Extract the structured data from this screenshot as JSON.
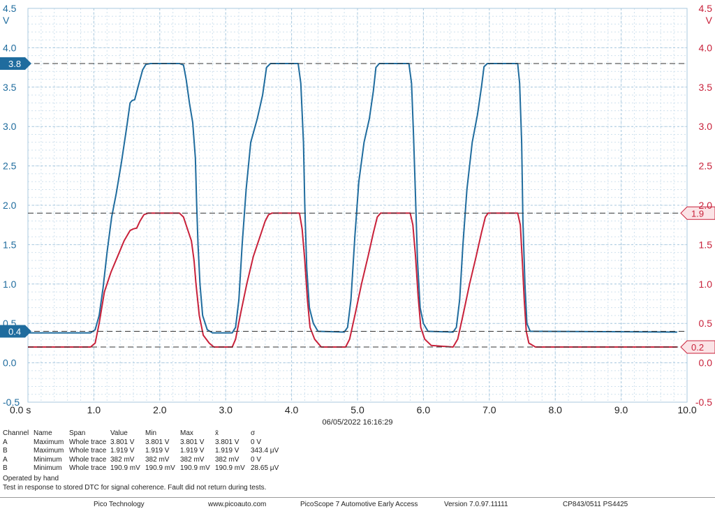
{
  "chart_data": {
    "type": "line",
    "timestamp": "06/05/2022 16:16:29",
    "x_axis": {
      "range": [
        0,
        10
      ],
      "ticks": [
        "0.0 s",
        "1.0",
        "2.0",
        "3.0",
        "4.0",
        "5.0",
        "6.0",
        "7.0",
        "8.0",
        "9.0",
        "10.0"
      ]
    },
    "y_axis_left": {
      "unit": "V",
      "range": [
        -0.5,
        4.5
      ],
      "ticks": [
        "4.5",
        "4.0",
        "3.5",
        "3.0",
        "2.5",
        "2.0",
        "1.5",
        "1.0",
        "0.5",
        "0.0",
        "-0.5"
      ],
      "color": "#1f6c9e"
    },
    "y_axis_right": {
      "unit": "V",
      "range": [
        -0.5,
        4.5
      ],
      "ticks": [
        "4.5",
        "4.0",
        "3.5",
        "3.0",
        "2.5",
        "2.0",
        "1.5",
        "1.0",
        "0.5",
        "0.0",
        "-0.5"
      ],
      "color": "#c8213a"
    },
    "grid": true,
    "markers_left": [
      {
        "label": "3.8",
        "value": 3.8
      },
      {
        "label": "0.4",
        "value": 0.4
      }
    ],
    "markers_right": [
      {
        "label": "1.9",
        "value": 1.9
      },
      {
        "label": "0.2",
        "value": 0.2
      }
    ],
    "series": [
      {
        "color": "#1f6c9e",
        "points": [
          [
            0.0,
            0.38
          ],
          [
            0.95,
            0.38
          ],
          [
            1.02,
            0.42
          ],
          [
            1.08,
            0.6
          ],
          [
            1.14,
            0.95
          ],
          [
            1.2,
            1.4
          ],
          [
            1.27,
            1.85
          ],
          [
            1.34,
            2.15
          ],
          [
            1.42,
            2.55
          ],
          [
            1.5,
            3.0
          ],
          [
            1.55,
            3.3
          ],
          [
            1.58,
            3.33
          ],
          [
            1.62,
            3.34
          ],
          [
            1.67,
            3.5
          ],
          [
            1.74,
            3.72
          ],
          [
            1.79,
            3.79
          ],
          [
            1.86,
            3.8
          ],
          [
            2.3,
            3.8
          ],
          [
            2.36,
            3.78
          ],
          [
            2.4,
            3.6
          ],
          [
            2.45,
            3.3
          ],
          [
            2.5,
            3.05
          ],
          [
            2.54,
            2.6
          ],
          [
            2.56,
            2.0
          ],
          [
            2.58,
            1.5
          ],
          [
            2.61,
            1.0
          ],
          [
            2.65,
            0.6
          ],
          [
            2.72,
            0.42
          ],
          [
            2.8,
            0.38
          ],
          [
            3.1,
            0.38
          ],
          [
            3.15,
            0.45
          ],
          [
            3.2,
            0.8
          ],
          [
            3.25,
            1.5
          ],
          [
            3.31,
            2.2
          ],
          [
            3.38,
            2.8
          ],
          [
            3.48,
            3.1
          ],
          [
            3.56,
            3.4
          ],
          [
            3.62,
            3.75
          ],
          [
            3.68,
            3.8
          ],
          [
            4.1,
            3.8
          ],
          [
            4.14,
            3.55
          ],
          [
            4.18,
            2.8
          ],
          [
            4.2,
            2.0
          ],
          [
            4.23,
            1.2
          ],
          [
            4.27,
            0.7
          ],
          [
            4.33,
            0.5
          ],
          [
            4.4,
            0.4
          ],
          [
            4.8,
            0.39
          ],
          [
            4.85,
            0.45
          ],
          [
            4.9,
            0.8
          ],
          [
            4.96,
            1.6
          ],
          [
            5.02,
            2.3
          ],
          [
            5.1,
            2.8
          ],
          [
            5.18,
            3.1
          ],
          [
            5.24,
            3.45
          ],
          [
            5.28,
            3.75
          ],
          [
            5.33,
            3.8
          ],
          [
            5.78,
            3.8
          ],
          [
            5.82,
            3.55
          ],
          [
            5.85,
            2.9
          ],
          [
            5.88,
            2.1
          ],
          [
            5.91,
            1.3
          ],
          [
            5.95,
            0.7
          ],
          [
            6.0,
            0.5
          ],
          [
            6.07,
            0.4
          ],
          [
            6.45,
            0.39
          ],
          [
            6.5,
            0.45
          ],
          [
            6.55,
            0.8
          ],
          [
            6.6,
            1.5
          ],
          [
            6.66,
            2.2
          ],
          [
            6.74,
            2.8
          ],
          [
            6.82,
            3.15
          ],
          [
            6.88,
            3.5
          ],
          [
            6.92,
            3.76
          ],
          [
            6.97,
            3.8
          ],
          [
            7.43,
            3.8
          ],
          [
            7.46,
            3.55
          ],
          [
            7.49,
            2.8
          ],
          [
            7.51,
            1.8
          ],
          [
            7.54,
            1.0
          ],
          [
            7.57,
            0.5
          ],
          [
            7.62,
            0.4
          ],
          [
            9.85,
            0.39
          ]
        ]
      },
      {
        "color": "#c8213a",
        "points": [
          [
            0.0,
            0.2
          ],
          [
            0.95,
            0.2
          ],
          [
            1.02,
            0.25
          ],
          [
            1.08,
            0.5
          ],
          [
            1.16,
            0.9
          ],
          [
            1.26,
            1.15
          ],
          [
            1.36,
            1.35
          ],
          [
            1.46,
            1.55
          ],
          [
            1.55,
            1.68
          ],
          [
            1.6,
            1.7
          ],
          [
            1.65,
            1.71
          ],
          [
            1.7,
            1.8
          ],
          [
            1.76,
            1.88
          ],
          [
            1.82,
            1.9
          ],
          [
            2.3,
            1.9
          ],
          [
            2.36,
            1.85
          ],
          [
            2.42,
            1.7
          ],
          [
            2.48,
            1.55
          ],
          [
            2.52,
            1.3
          ],
          [
            2.55,
            1.0
          ],
          [
            2.6,
            0.6
          ],
          [
            2.66,
            0.35
          ],
          [
            2.75,
            0.25
          ],
          [
            2.82,
            0.2
          ],
          [
            3.1,
            0.2
          ],
          [
            3.15,
            0.3
          ],
          [
            3.22,
            0.6
          ],
          [
            3.32,
            1.0
          ],
          [
            3.42,
            1.35
          ],
          [
            3.52,
            1.6
          ],
          [
            3.6,
            1.8
          ],
          [
            3.65,
            1.88
          ],
          [
            3.7,
            1.9
          ],
          [
            4.12,
            1.9
          ],
          [
            4.16,
            1.7
          ],
          [
            4.2,
            1.3
          ],
          [
            4.24,
            0.8
          ],
          [
            4.28,
            0.45
          ],
          [
            4.35,
            0.3
          ],
          [
            4.45,
            0.2
          ],
          [
            4.82,
            0.2
          ],
          [
            4.88,
            0.3
          ],
          [
            4.96,
            0.6
          ],
          [
            5.06,
            1.0
          ],
          [
            5.16,
            1.35
          ],
          [
            5.24,
            1.65
          ],
          [
            5.3,
            1.85
          ],
          [
            5.35,
            1.9
          ],
          [
            5.8,
            1.9
          ],
          [
            5.84,
            1.75
          ],
          [
            5.88,
            1.35
          ],
          [
            5.92,
            0.85
          ],
          [
            5.96,
            0.45
          ],
          [
            6.02,
            0.3
          ],
          [
            6.12,
            0.22
          ],
          [
            6.45,
            0.2
          ],
          [
            6.52,
            0.3
          ],
          [
            6.6,
            0.6
          ],
          [
            6.7,
            1.0
          ],
          [
            6.8,
            1.35
          ],
          [
            6.88,
            1.65
          ],
          [
            6.94,
            1.85
          ],
          [
            6.98,
            1.9
          ],
          [
            7.43,
            1.9
          ],
          [
            7.47,
            1.75
          ],
          [
            7.5,
            1.3
          ],
          [
            7.53,
            0.8
          ],
          [
            7.56,
            0.4
          ],
          [
            7.6,
            0.25
          ],
          [
            7.7,
            0.2
          ],
          [
            9.85,
            0.2
          ]
        ]
      }
    ]
  },
  "measurements": {
    "headers": [
      "Channel",
      "Name",
      "Span",
      "Value",
      "Min",
      "Max",
      "x̄",
      "σ"
    ],
    "rows": [
      [
        "A",
        "Maximum",
        "Whole trace",
        "3.801 V",
        "3.801 V",
        "3.801 V",
        "3.801 V",
        "0 V"
      ],
      [
        "B",
        "Maximum",
        "Whole trace",
        "1.919 V",
        "1.919 V",
        "1.919 V",
        "1.919 V",
        "343.4 μV"
      ],
      [
        "A",
        "Minimum",
        "Whole trace",
        "382 mV",
        "382 mV",
        "382 mV",
        "382 mV",
        "0 V"
      ],
      [
        "B",
        "Minimum",
        "Whole trace",
        "190.9 mV",
        "190.9 mV",
        "190.9 mV",
        "190.9 mV",
        "28.65 μV"
      ]
    ]
  },
  "notes": {
    "operated": "Operated by hand",
    "description": "Test in response to stored DTC for signal coherence. Fault did not return during tests."
  },
  "footer": {
    "company": "Pico Technology",
    "website": "www.picoauto.com",
    "product": "PicoScope 7 Automotive Early Access",
    "version": "Version 7.0.97.11111",
    "device": "CP843/0511 PS4425"
  }
}
